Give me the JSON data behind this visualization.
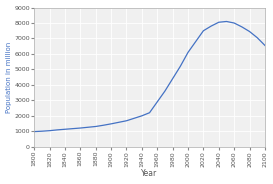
{
  "title": "",
  "xlabel": "Year",
  "ylabel": "Population in million",
  "line_color": "#4472c4",
  "background_color": "#ffffff",
  "plot_bg_color": "#f0f0f0",
  "grid_color": "#ffffff",
  "xlim": [
    1800,
    2100
  ],
  "ylim": [
    0,
    9000
  ],
  "xticks": [
    1800,
    1820,
    1840,
    1860,
    1880,
    1900,
    1920,
    1940,
    1960,
    1980,
    2000,
    2020,
    2040,
    2060,
    2080,
    2100
  ],
  "yticks": [
    0,
    1000,
    2000,
    3000,
    4000,
    5000,
    6000,
    7000,
    8000,
    9000
  ],
  "years": [
    1800,
    1810,
    1820,
    1830,
    1840,
    1850,
    1860,
    1870,
    1880,
    1890,
    1900,
    1910,
    1920,
    1930,
    1940,
    1950,
    1960,
    1970,
    1980,
    1990,
    2000,
    2010,
    2020,
    2030,
    2040,
    2050,
    2060,
    2070,
    2080,
    2090,
    2100
  ],
  "population": [
    980,
    1005,
    1040,
    1090,
    1130,
    1170,
    1210,
    1260,
    1310,
    1390,
    1480,
    1580,
    1680,
    1840,
    2000,
    2200,
    2900,
    3600,
    4400,
    5200,
    6100,
    6800,
    7500,
    7800,
    8050,
    8100,
    8000,
    7750,
    7450,
    7050,
    6550
  ],
  "xlabel_fontsize": 5.5,
  "ylabel_fontsize": 5.0,
  "tick_fontsize": 4.5,
  "linewidth": 0.9
}
